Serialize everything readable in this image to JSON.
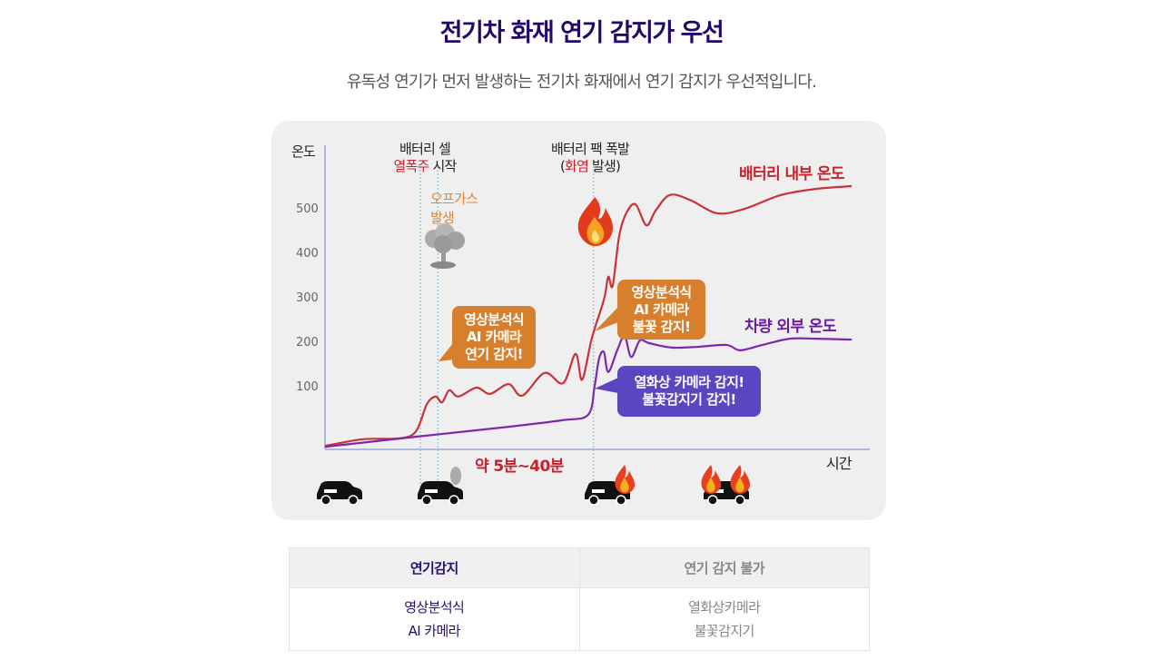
{
  "header": {
    "title": "전기차 화재 연기 감지가 우선",
    "subtitle": "유독성 연기가 먼저 발생하는 전기차 화재에서 연기 감지가 우선적입니다."
  },
  "chart_data": {
    "type": "line",
    "ylabel": "온도",
    "xlabel": "시간",
    "yticks": [
      100,
      200,
      300,
      400,
      500
    ],
    "xlim": [
      0,
      100
    ],
    "ylim": [
      -40,
      600
    ],
    "series": [
      {
        "name": "배터리 내부 온도",
        "color": "#c8323a",
        "points": [
          [
            0,
            -31
          ],
          [
            7,
            -16
          ],
          [
            13.7,
            -14
          ],
          [
            16.7,
            2
          ],
          [
            18.7,
            63
          ],
          [
            20.3,
            80
          ],
          [
            21.5,
            67
          ],
          [
            22.8,
            94
          ],
          [
            24.5,
            80
          ],
          [
            27.8,
            100
          ],
          [
            30.3,
            86
          ],
          [
            33.7,
            108
          ],
          [
            36.2,
            82
          ],
          [
            40.3,
            133
          ],
          [
            43.7,
            110
          ],
          [
            46,
            176
          ],
          [
            47.2,
            118
          ],
          [
            49,
            212
          ],
          [
            51.2,
            298
          ],
          [
            52,
            349
          ],
          [
            52.8,
            329
          ],
          [
            54,
            441
          ],
          [
            55.3,
            492
          ],
          [
            57,
            512
          ],
          [
            59,
            465
          ],
          [
            60.7,
            498
          ],
          [
            63.3,
            533
          ],
          [
            67,
            522
          ],
          [
            72,
            492
          ],
          [
            77,
            502
          ],
          [
            83.7,
            533
          ],
          [
            90.3,
            547
          ],
          [
            96.7,
            553
          ]
        ]
      },
      {
        "name": "차량 외부 온도",
        "color": "#7a2aa8",
        "points": [
          [
            0,
            -33
          ],
          [
            17,
            -10
          ],
          [
            33.7,
            12
          ],
          [
            43.7,
            27
          ],
          [
            48.3,
            39
          ],
          [
            49.5,
            104
          ],
          [
            50.3,
            165
          ],
          [
            51.2,
            180
          ],
          [
            52,
            135
          ],
          [
            53.7,
            186
          ],
          [
            55,
            216
          ],
          [
            56.2,
            169
          ],
          [
            57.8,
            206
          ],
          [
            59.5,
            200
          ],
          [
            63.7,
            190
          ],
          [
            68.7,
            192
          ],
          [
            73.7,
            196
          ],
          [
            76.2,
            184
          ],
          [
            80.3,
            196
          ],
          [
            85.3,
            210
          ],
          [
            90.3,
            210
          ],
          [
            96.7,
            208
          ]
        ]
      }
    ],
    "events": [
      {
        "t": 17.5,
        "line1": "배터리 셀",
        "line2_highlight": "열폭주",
        "line2_rest": " 시작"
      },
      {
        "t": 20.7,
        "label1": "오프가스",
        "label2": "발생"
      },
      {
        "t": 49.3,
        "line1": "배터리 팩 폭발",
        "line2_open": "(",
        "line2_highlight": "화염",
        "line2_rest": " 발생)"
      }
    ],
    "callouts": [
      {
        "lines": [
          "영상분석식",
          "AI 카메라",
          "연기 감지!"
        ],
        "color": "#d87f2d"
      },
      {
        "lines": [
          "영상분석식",
          "AI 카메라",
          "불꽃 감지!"
        ],
        "color": "#d87f2d"
      },
      {
        "lines": [
          "열화상 카메라 감지!",
          "불꽃감지기 감지!"
        ],
        "color": "#5b45c0"
      }
    ],
    "duration_label": "약 5분~40분"
  },
  "table": {
    "headers": [
      "연기감지",
      "연기 감지 불가"
    ],
    "rows": [
      [
        [
          "영상분석식",
          "AI 카메라"
        ],
        [
          "열화상카메라",
          "불꽃감지기"
        ]
      ]
    ]
  }
}
